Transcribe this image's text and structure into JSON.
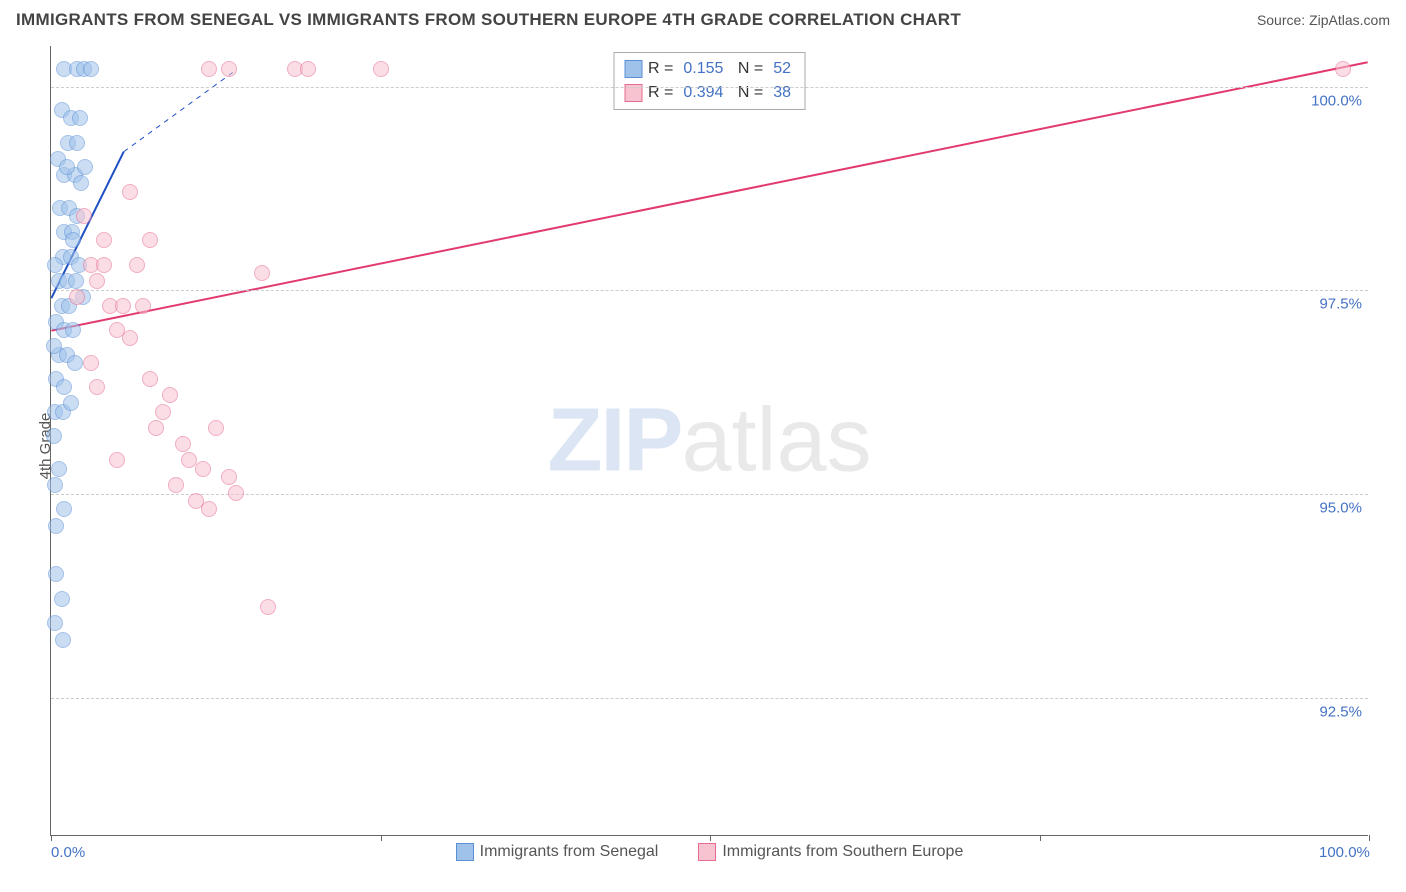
{
  "header": {
    "title": "IMMIGRANTS FROM SENEGAL VS IMMIGRANTS FROM SOUTHERN EUROPE 4TH GRADE CORRELATION CHART",
    "source_label": "Source:",
    "source_value": "ZipAtlas.com"
  },
  "chart": {
    "type": "scatter",
    "ylabel": "4th Grade",
    "xlim": [
      0,
      100
    ],
    "ylim": [
      90.8,
      100.5
    ],
    "xticks": [
      0,
      25,
      50,
      75,
      100
    ],
    "xtick_labels": {
      "0": "0.0%",
      "100": "100.0%"
    },
    "yticks": [
      92.5,
      95.0,
      97.5,
      100.0
    ],
    "ytick_labels": [
      "92.5%",
      "95.0%",
      "97.5%",
      "100.0%"
    ],
    "grid_color": "#cccccc",
    "background_color": "#ffffff",
    "marker_radius": 8,
    "marker_opacity": 0.55,
    "series": [
      {
        "name": "Immigrants from Senegal",
        "color_fill": "#9fc2ea",
        "color_stroke": "#5a8fd6",
        "R": "0.155",
        "N": "52",
        "trend": {
          "x1": 0,
          "y1": 97.4,
          "x2": 5.5,
          "y2": 99.2,
          "color": "#1f4fc4",
          "width": 2,
          "dash_ext_x": 14,
          "dash_ext_y": 100.2
        },
        "points": [
          [
            1.0,
            100.2
          ],
          [
            2.0,
            100.2
          ],
          [
            2.5,
            100.2
          ],
          [
            3.0,
            100.2
          ],
          [
            0.8,
            99.7
          ],
          [
            1.5,
            99.6
          ],
          [
            2.2,
            99.6
          ],
          [
            1.3,
            99.3
          ],
          [
            2.0,
            99.3
          ],
          [
            1.0,
            98.9
          ],
          [
            1.8,
            98.9
          ],
          [
            2.3,
            98.8
          ],
          [
            0.7,
            98.5
          ],
          [
            1.4,
            98.5
          ],
          [
            2.0,
            98.4
          ],
          [
            1.0,
            98.2
          ],
          [
            1.6,
            98.2
          ],
          [
            0.9,
            97.9
          ],
          [
            1.5,
            97.9
          ],
          [
            2.1,
            97.8
          ],
          [
            0.6,
            97.6
          ],
          [
            1.2,
            97.6
          ],
          [
            1.9,
            97.6
          ],
          [
            0.8,
            97.3
          ],
          [
            1.4,
            97.3
          ],
          [
            0.4,
            97.1
          ],
          [
            1.0,
            97.0
          ],
          [
            1.7,
            97.0
          ],
          [
            0.6,
            96.7
          ],
          [
            1.2,
            96.7
          ],
          [
            1.8,
            96.6
          ],
          [
            0.4,
            96.4
          ],
          [
            1.0,
            96.3
          ],
          [
            0.3,
            96.0
          ],
          [
            0.9,
            96.0
          ],
          [
            0.6,
            95.3
          ],
          [
            0.3,
            95.1
          ],
          [
            1.0,
            94.8
          ],
          [
            0.4,
            94.6
          ],
          [
            0.4,
            94.0
          ],
          [
            0.8,
            93.7
          ],
          [
            0.3,
            93.4
          ],
          [
            0.9,
            93.2
          ],
          [
            0.5,
            99.1
          ],
          [
            1.2,
            99.0
          ],
          [
            2.6,
            99.0
          ],
          [
            1.7,
            98.1
          ],
          [
            0.3,
            97.8
          ],
          [
            2.4,
            97.4
          ],
          [
            0.2,
            96.8
          ],
          [
            1.5,
            96.1
          ],
          [
            0.2,
            95.7
          ]
        ]
      },
      {
        "name": "Immigrants from Southern Europe",
        "color_fill": "#f7c3d0",
        "color_stroke": "#e56b8f",
        "R": "0.394",
        "N": "38",
        "trend": {
          "x1": 0,
          "y1": 97.0,
          "x2": 100,
          "y2": 100.3,
          "color": "#e23a6e",
          "width": 2
        },
        "points": [
          [
            12.0,
            100.2
          ],
          [
            13.5,
            100.2
          ],
          [
            18.5,
            100.2
          ],
          [
            19.5,
            100.2
          ],
          [
            25.0,
            100.2
          ],
          [
            98.0,
            100.2
          ],
          [
            6.0,
            98.7
          ],
          [
            7.5,
            98.1
          ],
          [
            3.0,
            97.8
          ],
          [
            4.0,
            97.8
          ],
          [
            6.5,
            97.8
          ],
          [
            16.0,
            97.7
          ],
          [
            2.0,
            97.4
          ],
          [
            4.5,
            97.3
          ],
          [
            5.5,
            97.3
          ],
          [
            7.0,
            97.3
          ],
          [
            3.0,
            96.6
          ],
          [
            7.5,
            96.4
          ],
          [
            3.5,
            96.3
          ],
          [
            9.0,
            96.2
          ],
          [
            8.0,
            95.8
          ],
          [
            12.5,
            95.8
          ],
          [
            10.5,
            95.4
          ],
          [
            5.0,
            95.4
          ],
          [
            13.5,
            95.2
          ],
          [
            9.5,
            95.1
          ],
          [
            11.0,
            94.9
          ],
          [
            12.0,
            94.8
          ],
          [
            16.5,
            93.6
          ],
          [
            2.5,
            98.4
          ],
          [
            4.0,
            98.1
          ],
          [
            5.0,
            97.0
          ],
          [
            6.0,
            96.9
          ],
          [
            8.5,
            96.0
          ],
          [
            10.0,
            95.6
          ],
          [
            14.0,
            95.0
          ],
          [
            11.5,
            95.3
          ],
          [
            3.5,
            97.6
          ]
        ]
      }
    ],
    "bottom_legend": [
      {
        "label": "Immigrants from Senegal",
        "fill": "#9fc2ea",
        "stroke": "#5a8fd6"
      },
      {
        "label": "Immigrants from Southern Europe",
        "fill": "#f7c3d0",
        "stroke": "#e56b8f"
      }
    ],
    "watermark": {
      "part1": "ZIP",
      "part2": "atlas"
    }
  }
}
